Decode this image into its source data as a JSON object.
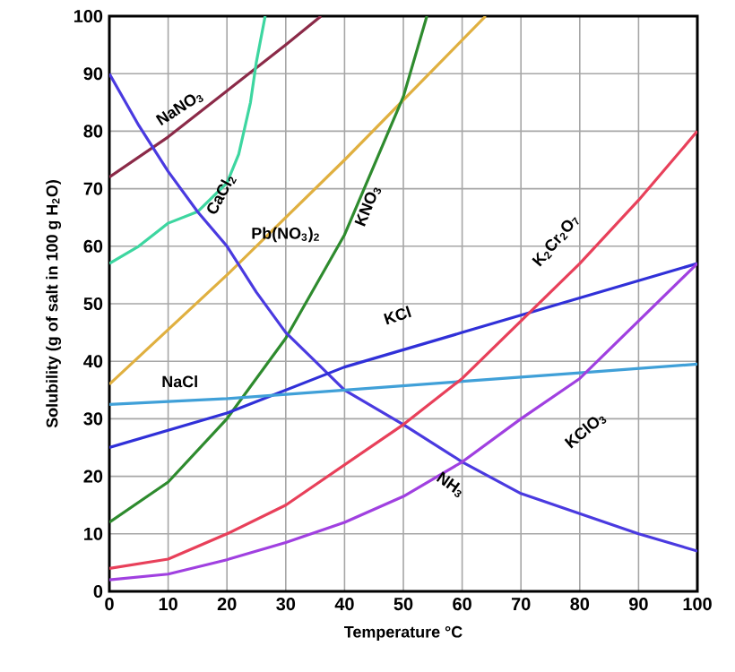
{
  "chart_data": {
    "type": "line",
    "xlabel": "Temperature °C",
    "ylabel": "Solubility (g of salt in 100 g H$_{2}$O)",
    "x": [
      0,
      10,
      20,
      30,
      40,
      50,
      60,
      70,
      80,
      90,
      100
    ],
    "xlim": [
      0,
      100
    ],
    "ylim": [
      0,
      100
    ],
    "xticks": [
      0,
      10,
      20,
      30,
      40,
      50,
      60,
      70,
      80,
      90,
      100
    ],
    "yticks": [
      0,
      10,
      20,
      30,
      40,
      50,
      60,
      70,
      80,
      90,
      100
    ],
    "grid": true,
    "series": [
      {
        "name": "NaNO$_{3}$",
        "color": "#8b2a48",
        "x": [
          0,
          10,
          20,
          30,
          36
        ],
        "values": [
          72,
          79,
          87,
          95,
          100
        ]
      },
      {
        "name": "CaCl$_{2}$",
        "color": "#3dd6a0",
        "x": [
          0,
          5,
          10,
          15,
          20,
          22,
          24,
          25,
          26.5
        ],
        "values": [
          57,
          60,
          64,
          66,
          71,
          76,
          85,
          92,
          100
        ]
      },
      {
        "name": "Pb(NO$_{3}$)$_{2}$",
        "color": "#e0b040",
        "x": [
          0,
          20,
          40,
          64
        ],
        "values": [
          36,
          55,
          75,
          100
        ]
      },
      {
        "name": "KNO$_{3}$",
        "color": "#2e8b2e",
        "x": [
          0,
          10,
          20,
          30,
          40,
          50,
          54
        ],
        "values": [
          12,
          19,
          30,
          44,
          62,
          86,
          100
        ]
      },
      {
        "name": "NH$_{3}$",
        "color": "#4a3ae0",
        "x": [
          0,
          5,
          10,
          15,
          20,
          25,
          30,
          35,
          40,
          50,
          60,
          70,
          80,
          90,
          100
        ],
        "values": [
          90,
          81,
          73,
          66,
          60,
          52,
          45,
          40,
          35,
          29,
          22.5,
          17,
          13.5,
          10,
          7
        ]
      },
      {
        "name": "KCl",
        "color": "#3030d8",
        "x": [
          0,
          20,
          40,
          60,
          80,
          100
        ],
        "values": [
          25,
          31,
          39,
          45,
          51,
          57
        ]
      },
      {
        "name": "NaCl",
        "color": "#40a0d8",
        "x": [
          0,
          20,
          40,
          60,
          80,
          100
        ],
        "values": [
          32.5,
          33.5,
          35,
          36.5,
          38,
          39.5
        ]
      },
      {
        "name": "K$_{2}$Cr$_{2}$O$_{7}$",
        "color": "#e8405a",
        "values": [
          4,
          5.6,
          10,
          15,
          22,
          29,
          37,
          47,
          57,
          68,
          80
        ]
      },
      {
        "name": "KClO$_{3}$",
        "color": "#a040e0",
        "values": [
          2,
          3,
          5.5,
          8.5,
          12,
          16.5,
          22.5,
          30,
          37,
          47,
          57
        ]
      }
    ]
  }
}
